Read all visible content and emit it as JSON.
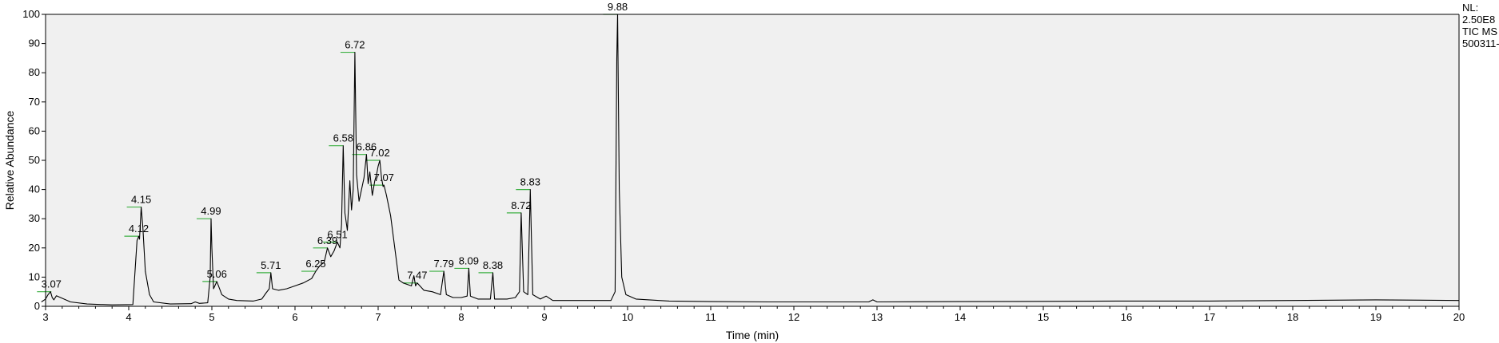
{
  "chart_data": {
    "type": "line",
    "title": "",
    "xlabel": "Time (min)",
    "ylabel": "Relative Abundance",
    "xlim": [
      3,
      20
    ],
    "ylim": [
      0,
      100
    ],
    "xticks": [
      3,
      4,
      5,
      6,
      7,
      8,
      9,
      10,
      11,
      12,
      13,
      14,
      15,
      16,
      17,
      18,
      19,
      20
    ],
    "yticks": [
      0,
      10,
      20,
      30,
      40,
      50,
      60,
      70,
      80,
      90,
      100
    ],
    "line_color": "#000000",
    "marker_color": "#3cb043",
    "background_color": "#f0f0f0",
    "grid": false,
    "series": [
      {
        "values": [
          [
            2.95,
            1.5
          ],
          [
            3.0,
            2.5
          ],
          [
            3.03,
            4.0
          ],
          [
            3.06,
            5.0
          ],
          [
            3.08,
            3.0
          ],
          [
            3.1,
            2.2
          ],
          [
            3.13,
            3.6
          ],
          [
            3.18,
            3.0
          ],
          [
            3.3,
            1.5
          ],
          [
            3.5,
            0.8
          ],
          [
            3.8,
            0.5
          ],
          [
            4.05,
            0.6
          ],
          [
            4.1,
            22.5
          ],
          [
            4.12,
            24.0
          ],
          [
            4.13,
            23.0
          ],
          [
            4.15,
            34.0
          ],
          [
            4.17,
            27.0
          ],
          [
            4.2,
            12.0
          ],
          [
            4.25,
            4.0
          ],
          [
            4.3,
            1.5
          ],
          [
            4.5,
            0.8
          ],
          [
            4.75,
            0.9
          ],
          [
            4.8,
            1.5
          ],
          [
            4.85,
            1.0
          ],
          [
            4.95,
            1.2
          ],
          [
            4.98,
            10.0
          ],
          [
            4.99,
            30.0
          ],
          [
            5.0,
            20.0
          ],
          [
            5.02,
            6.0
          ],
          [
            5.06,
            8.5
          ],
          [
            5.08,
            7.0
          ],
          [
            5.12,
            4.0
          ],
          [
            5.2,
            2.5
          ],
          [
            5.3,
            2.0
          ],
          [
            5.5,
            1.8
          ],
          [
            5.6,
            2.5
          ],
          [
            5.65,
            4.5
          ],
          [
            5.69,
            6.0
          ],
          [
            5.71,
            11.5
          ],
          [
            5.73,
            6.0
          ],
          [
            5.8,
            5.5
          ],
          [
            5.9,
            6.0
          ],
          [
            6.0,
            7.0
          ],
          [
            6.1,
            8.0
          ],
          [
            6.2,
            9.5
          ],
          [
            6.25,
            12.0
          ],
          [
            6.3,
            14.0
          ],
          [
            6.35,
            15.0
          ],
          [
            6.39,
            20.0
          ],
          [
            6.43,
            17.0
          ],
          [
            6.47,
            19.0
          ],
          [
            6.51,
            22.0
          ],
          [
            6.54,
            20.0
          ],
          [
            6.56,
            28.0
          ],
          [
            6.58,
            55.0
          ],
          [
            6.6,
            32.0
          ],
          [
            6.63,
            26.0
          ],
          [
            6.66,
            43.0
          ],
          [
            6.68,
            33.0
          ],
          [
            6.7,
            40.0
          ],
          [
            6.72,
            87.0
          ],
          [
            6.74,
            45.0
          ],
          [
            6.77,
            36.0
          ],
          [
            6.8,
            40.0
          ],
          [
            6.83,
            44.0
          ],
          [
            6.86,
            52.0
          ],
          [
            6.88,
            42.0
          ],
          [
            6.9,
            46.0
          ],
          [
            6.93,
            38.0
          ],
          [
            6.96,
            43.0
          ],
          [
            6.98,
            45.0
          ],
          [
            7.0,
            48.0
          ],
          [
            7.02,
            50.0
          ],
          [
            7.04,
            44.0
          ],
          [
            7.06,
            41.0
          ],
          [
            7.07,
            41.5
          ],
          [
            7.1,
            38.0
          ],
          [
            7.15,
            31.0
          ],
          [
            7.2,
            20.0
          ],
          [
            7.25,
            9.0
          ],
          [
            7.3,
            8.0
          ],
          [
            7.4,
            7.0
          ],
          [
            7.43,
            10.5
          ],
          [
            7.45,
            7.0
          ],
          [
            7.47,
            8.0
          ],
          [
            7.55,
            5.5
          ],
          [
            7.65,
            5.0
          ],
          [
            7.75,
            4.0
          ],
          [
            7.79,
            12.0
          ],
          [
            7.82,
            4.0
          ],
          [
            7.9,
            3.0
          ],
          [
            8.0,
            3.0
          ],
          [
            8.07,
            3.5
          ],
          [
            8.09,
            13.0
          ],
          [
            8.11,
            3.5
          ],
          [
            8.2,
            2.5
          ],
          [
            8.35,
            2.5
          ],
          [
            8.38,
            11.5
          ],
          [
            8.4,
            2.5
          ],
          [
            8.55,
            2.5
          ],
          [
            8.65,
            3.0
          ],
          [
            8.7,
            5.0
          ],
          [
            8.72,
            32.0
          ],
          [
            8.75,
            5.0
          ],
          [
            8.8,
            4.0
          ],
          [
            8.83,
            40.0
          ],
          [
            8.86,
            4.0
          ],
          [
            8.95,
            2.5
          ],
          [
            9.02,
            3.5
          ],
          [
            9.1,
            2.0
          ],
          [
            9.4,
            2.0
          ],
          [
            9.8,
            2.0
          ],
          [
            9.85,
            5.0
          ],
          [
            9.87,
            85.0
          ],
          [
            9.88,
            100.0
          ],
          [
            9.9,
            40.0
          ],
          [
            9.93,
            10.0
          ],
          [
            9.98,
            4.0
          ],
          [
            10.1,
            2.5
          ],
          [
            10.5,
            1.8
          ],
          [
            11.0,
            1.6
          ],
          [
            11.7,
            1.5
          ],
          [
            12.0,
            1.5
          ],
          [
            12.9,
            1.5
          ],
          [
            12.95,
            2.2
          ],
          [
            13.0,
            1.5
          ],
          [
            14.0,
            1.6
          ],
          [
            15.0,
            1.7
          ],
          [
            16.0,
            1.8
          ],
          [
            17.0,
            1.8
          ],
          [
            18.0,
            2.0
          ],
          [
            19.0,
            2.2
          ],
          [
            20.0,
            2.0
          ]
        ]
      }
    ],
    "peak_labels": [
      {
        "label": "3.07",
        "x": 3.07,
        "y": 5.0
      },
      {
        "label": "4.12",
        "x": 4.12,
        "y": 24.0
      },
      {
        "label": "4.15",
        "x": 4.15,
        "y": 34.0
      },
      {
        "label": "4.99",
        "x": 4.99,
        "y": 30.0
      },
      {
        "label": "5.06",
        "x": 5.06,
        "y": 8.5
      },
      {
        "label": "5.71",
        "x": 5.71,
        "y": 11.5
      },
      {
        "label": "6.25",
        "x": 6.25,
        "y": 12.0
      },
      {
        "label": "6.39",
        "x": 6.39,
        "y": 20.0
      },
      {
        "label": "6.51",
        "x": 6.51,
        "y": 22.0
      },
      {
        "label": "6.58",
        "x": 6.58,
        "y": 55.0
      },
      {
        "label": "6.72",
        "x": 6.72,
        "y": 87.0
      },
      {
        "label": "6.86",
        "x": 6.86,
        "y": 52.0
      },
      {
        "label": "7.02",
        "x": 7.02,
        "y": 50.0
      },
      {
        "label": "7.07",
        "x": 7.07,
        "y": 41.5
      },
      {
        "label": "7.47",
        "x": 7.47,
        "y": 8.0
      },
      {
        "label": "7.79",
        "x": 7.79,
        "y": 12.0
      },
      {
        "label": "8.09",
        "x": 8.09,
        "y": 13.0
      },
      {
        "label": "8.38",
        "x": 8.38,
        "y": 11.5
      },
      {
        "label": "8.72",
        "x": 8.72,
        "y": 32.0
      },
      {
        "label": "8.83",
        "x": 8.83,
        "y": 40.0
      },
      {
        "label": "9.88",
        "x": 9.88,
        "y": 100.0
      }
    ]
  },
  "side_info": {
    "nl_label": "NL:",
    "nl_value": "2.50E8",
    "trace_type": "TIC  MS",
    "file_name": "500311-"
  }
}
